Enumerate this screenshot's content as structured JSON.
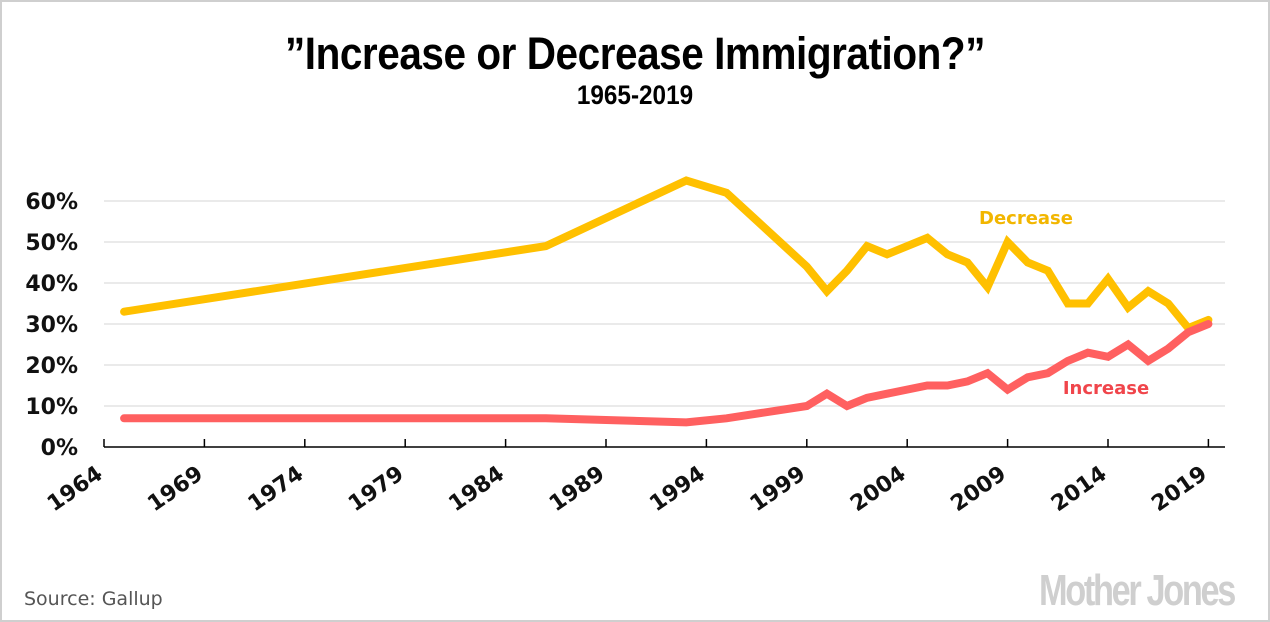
{
  "header": {
    "title": "”Increase or Decrease Immigration?”",
    "subtitle": "1965-2019"
  },
  "footer": {
    "source": "Source:  Gallup",
    "logo": "Mother Jones"
  },
  "chart_data": {
    "type": "line",
    "title": "”Increase or Decrease Immigration?”",
    "subtitle": "1965-2019",
    "xlabel": "",
    "ylabel": "",
    "xlim": [
      1964,
      2020
    ],
    "ylim": [
      0,
      65
    ],
    "grid": true,
    "y_ticks": [
      0,
      10,
      20,
      30,
      40,
      50,
      60
    ],
    "y_tick_labels": [
      "0%",
      "10%",
      "20%",
      "30%",
      "40%",
      "50%",
      "60%"
    ],
    "x_ticks": [
      1964,
      1969,
      1974,
      1979,
      1984,
      1989,
      1994,
      1999,
      2004,
      2009,
      2014,
      2019
    ],
    "x_tick_labels": [
      "1964",
      "1969",
      "1974",
      "1979",
      "1984",
      "1989",
      "1994",
      "1999",
      "2004",
      "2009",
      "2014",
      "2019"
    ],
    "legend": "inline-labels",
    "series": [
      {
        "name": "Decrease",
        "color": "#FFC000",
        "x": [
          1965,
          1986,
          1993,
          1995,
          1999,
          2000,
          2001,
          2002,
          2003,
          2005,
          2006,
          2007,
          2008,
          2009,
          2010,
          2011,
          2012,
          2013,
          2014,
          2015,
          2016,
          2017,
          2018,
          2019
        ],
        "values": [
          33,
          49,
          65,
          62,
          44,
          38,
          43,
          49,
          47,
          51,
          47,
          45,
          39,
          50,
          45,
          43,
          35,
          35,
          41,
          34,
          38,
          35,
          29,
          31
        ]
      },
      {
        "name": "Increase",
        "color": "#FF6060",
        "x": [
          1965,
          1986,
          1993,
          1995,
          1999,
          2000,
          2001,
          2002,
          2003,
          2005,
          2006,
          2007,
          2008,
          2009,
          2010,
          2011,
          2012,
          2013,
          2014,
          2015,
          2016,
          2017,
          2018,
          2019
        ],
        "values": [
          7,
          7,
          6,
          7,
          10,
          13,
          10,
          12,
          13,
          15,
          15,
          16,
          18,
          14,
          17,
          18,
          21,
          23,
          22,
          25,
          21,
          24,
          28,
          30
        ]
      }
    ],
    "series_label_colors": {
      "Decrease": "#F2B600",
      "Increase": "#F0454B"
    }
  }
}
